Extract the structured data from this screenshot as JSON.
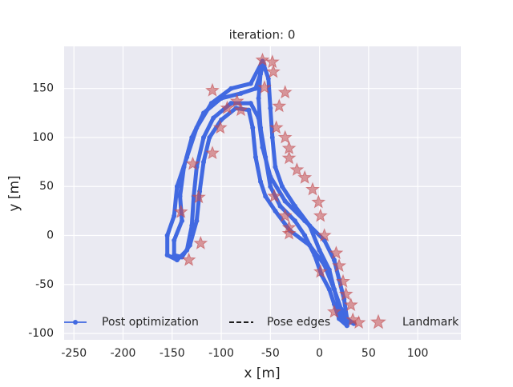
{
  "chart_data": {
    "type": "trajectory",
    "title": "iteration: 0",
    "x_label": "x [m]",
    "y_label": "y [m]",
    "xlim": [
      -260,
      144
    ],
    "ylim": [
      -106.5,
      193
    ],
    "xticks": [
      -250,
      -200,
      -150,
      -100,
      -50,
      0,
      50,
      100
    ],
    "yticks": [
      -100,
      -50,
      0,
      50,
      100,
      150
    ],
    "grid": true,
    "legend": "lower left",
    "series": [
      {
        "name": "Post optimization",
        "kind": "line",
        "color": "#4169e1",
        "x": [
          28,
          20,
          15,
          10,
          2,
          -5,
          -15,
          -25,
          -40,
          -50,
          -55,
          -60,
          -62,
          -60,
          -58,
          -70,
          -90,
          -110,
          -125,
          -135,
          -145,
          -148,
          -155,
          -155,
          -145,
          -135,
          -130,
          -128,
          -125,
          -118,
          -108,
          -90,
          -70,
          -62,
          -58,
          -50,
          -35,
          -15,
          5,
          15,
          20,
          25,
          28,
          35,
          30,
          22,
          15,
          10,
          0,
          -10,
          -25,
          -38,
          -45,
          -48,
          -50,
          -52,
          -57,
          -60,
          -65,
          -80,
          -100,
          -118,
          -130,
          -138,
          -142,
          -140,
          -148,
          -148,
          -140,
          -132,
          -125,
          -122,
          -118,
          -112,
          -100,
          -85,
          -72,
          -68,
          -65,
          -60,
          -55,
          -45,
          -30,
          -10,
          5,
          15,
          22,
          28
        ],
        "y": [
          -92,
          -85,
          -70,
          -55,
          -40,
          -20,
          0,
          15,
          30,
          50,
          80,
          110,
          140,
          165,
          178,
          155,
          150,
          135,
          110,
          80,
          50,
          20,
          0,
          -20,
          -25,
          -15,
          10,
          40,
          70,
          100,
          120,
          135,
          135,
          120,
          90,
          60,
          35,
          15,
          -5,
          -25,
          -45,
          -65,
          -85,
          -90,
          -88,
          -75,
          -55,
          -35,
          -15,
          10,
          30,
          50,
          70,
          100,
          130,
          160,
          175,
          165,
          150,
          145,
          140,
          125,
          100,
          70,
          40,
          15,
          -5,
          -20,
          -22,
          -10,
          15,
          45,
          75,
          100,
          118,
          130,
          128,
          110,
          80,
          55,
          40,
          25,
          5,
          -10,
          -30,
          -55,
          -80,
          -92
        ]
      },
      {
        "name": "Pose edges",
        "kind": "dashed",
        "color": "#000000",
        "x": [],
        "y": []
      },
      {
        "name": "Landmark",
        "kind": "star",
        "color": "#c44e52",
        "x": [
          -109,
          -56,
          -47,
          -35,
          -41,
          -84,
          -94,
          -80,
          -44,
          -35,
          -101,
          -31,
          -31,
          -23,
          -15,
          -109,
          -129,
          -123,
          -7,
          -1,
          -46,
          -35,
          -31,
          -31,
          1,
          5,
          -141,
          -121,
          -133,
          17,
          20,
          1,
          24,
          27,
          32,
          15,
          34,
          40,
          -48,
          -58
        ],
        "y": [
          148,
          151,
          167,
          146,
          132,
          137,
          130,
          128,
          110,
          100,
          110,
          89,
          79,
          67,
          59,
          84,
          73,
          39,
          47,
          34,
          40,
          20,
          8,
          2,
          20,
          0,
          24,
          -8,
          -25,
          -18,
          -31,
          -37,
          -47,
          -60,
          -71,
          -78,
          -86,
          -89,
          177,
          179
        ]
      }
    ]
  }
}
